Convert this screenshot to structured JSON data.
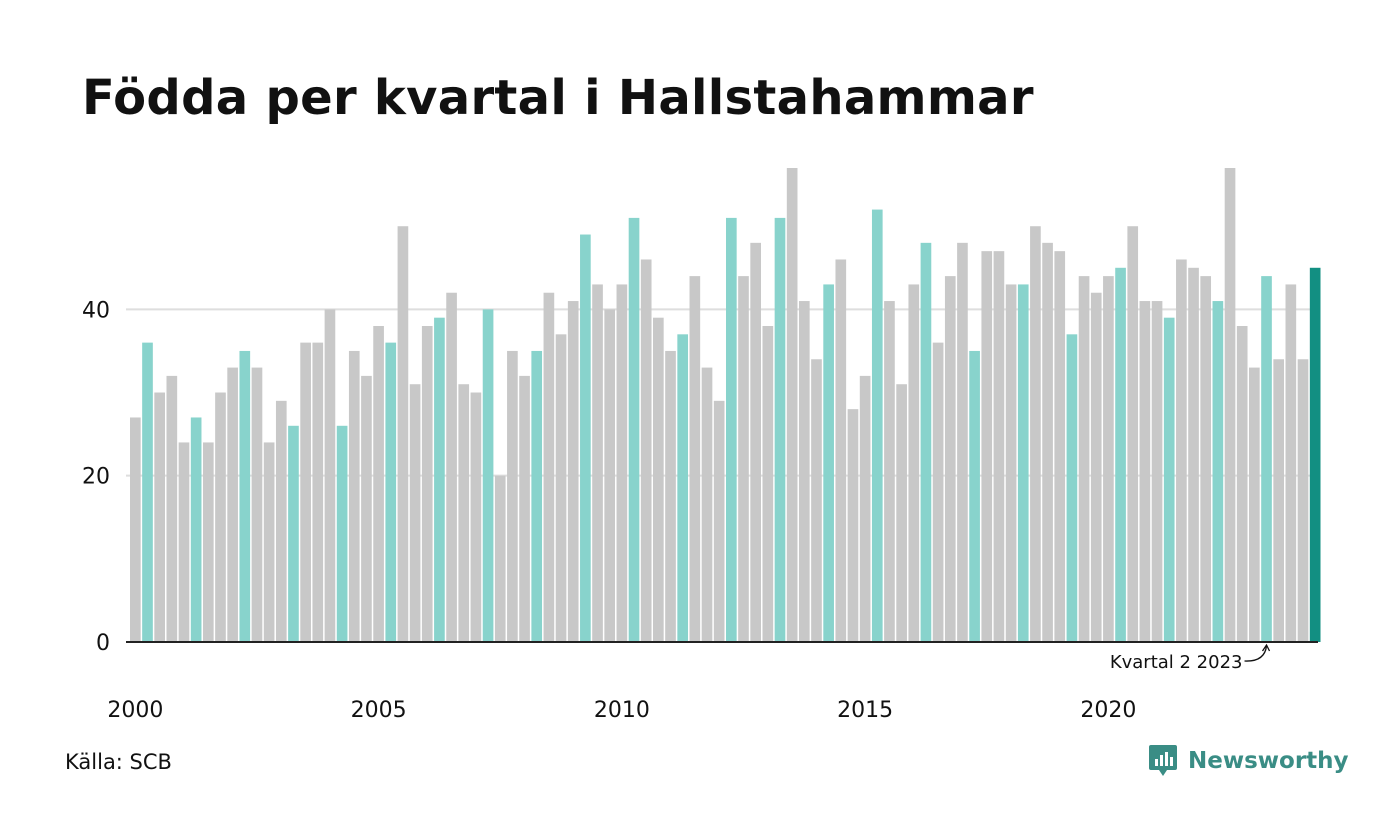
{
  "title": "Födda per kvartal i Hallstahammar",
  "source": "Källa: SCB",
  "brand": {
    "name": "Newsworthy",
    "icon": "bar-chart-icon",
    "color": "#3a8d85"
  },
  "colors": {
    "grey_bar": "#c8c8c8",
    "quarter_bar": "#88d3cc",
    "highlight_bar": "#128f82",
    "grid": "#dedede",
    "axis": "#222222"
  },
  "annotation": {
    "label": "Kvartal 2 2023"
  },
  "chart_data": {
    "type": "bar",
    "title": "Födda per kvartal i Hallstahammar",
    "xlabel": "",
    "ylabel": "",
    "ylim": [
      0,
      57
    ],
    "yticks": [
      0,
      20,
      40
    ],
    "xtick_labels": [
      "2000",
      "2005",
      "2010",
      "2015",
      "2020"
    ],
    "grid": "horizontal",
    "highlight_quarter": 2,
    "categories": [
      "2000 K1",
      "2000 K2",
      "2000 K3",
      "2000 K4",
      "2001 K1",
      "2001 K2",
      "2001 K3",
      "2001 K4",
      "2002 K1",
      "2002 K2",
      "2002 K3",
      "2002 K4",
      "2003 K1",
      "2003 K2",
      "2003 K3",
      "2003 K4",
      "2004 K1",
      "2004 K2",
      "2004 K3",
      "2004 K4",
      "2005 K1",
      "2005 K2",
      "2005 K3",
      "2005 K4",
      "2006 K1",
      "2006 K2",
      "2006 K3",
      "2006 K4",
      "2007 K1",
      "2007 K2",
      "2007 K3",
      "2007 K4",
      "2008 K1",
      "2008 K2",
      "2008 K3",
      "2008 K4",
      "2009 K1",
      "2009 K2",
      "2009 K3",
      "2009 K4",
      "2010 K1",
      "2010 K2",
      "2010 K3",
      "2010 K4",
      "2011 K1",
      "2011 K2",
      "2011 K3",
      "2011 K4",
      "2012 K1",
      "2012 K2",
      "2012 K3",
      "2012 K4",
      "2013 K1",
      "2013 K2",
      "2013 K3",
      "2013 K4",
      "2014 K1",
      "2014 K2",
      "2014 K3",
      "2014 K4",
      "2015 K1",
      "2015 K2",
      "2015 K3",
      "2015 K4",
      "2016 K1",
      "2016 K2",
      "2016 K3",
      "2016 K4",
      "2017 K1",
      "2017 K2",
      "2017 K3",
      "2017 K4",
      "2018 K1",
      "2018 K2",
      "2018 K3",
      "2018 K4",
      "2019 K1",
      "2019 K2",
      "2019 K3",
      "2019 K4",
      "2020 K1",
      "2020 K2",
      "2020 K3",
      "2020 K4",
      "2021 K1",
      "2021 K2",
      "2021 K3",
      "2021 K4",
      "2022 K1",
      "2022 K2",
      "2022 K3",
      "2022 K4",
      "2023 K1",
      "2023 K2",
      "2023 K3",
      "2023 K4",
      "2024 K1",
      "2024 K2"
    ],
    "values": [
      27,
      36,
      30,
      32,
      24,
      27,
      24,
      30,
      33,
      35,
      33,
      24,
      29,
      26,
      36,
      36,
      40,
      26,
      35,
      32,
      38,
      36,
      50,
      31,
      38,
      39,
      42,
      31,
      30,
      40,
      20,
      35,
      32,
      35,
      42,
      37,
      41,
      49,
      43,
      40,
      43,
      51,
      46,
      39,
      35,
      37,
      44,
      33,
      29,
      51,
      44,
      48,
      38,
      51,
      57,
      41,
      34,
      43,
      46,
      28,
      32,
      52,
      41,
      31,
      43,
      48,
      36,
      44,
      48,
      35,
      47,
      47,
      43,
      43,
      50,
      48,
      47,
      37,
      44,
      42,
      44,
      45,
      50,
      41,
      41,
      39,
      46,
      45,
      44,
      41,
      57,
      38,
      33,
      44,
      34,
      43,
      34,
      45
    ]
  }
}
